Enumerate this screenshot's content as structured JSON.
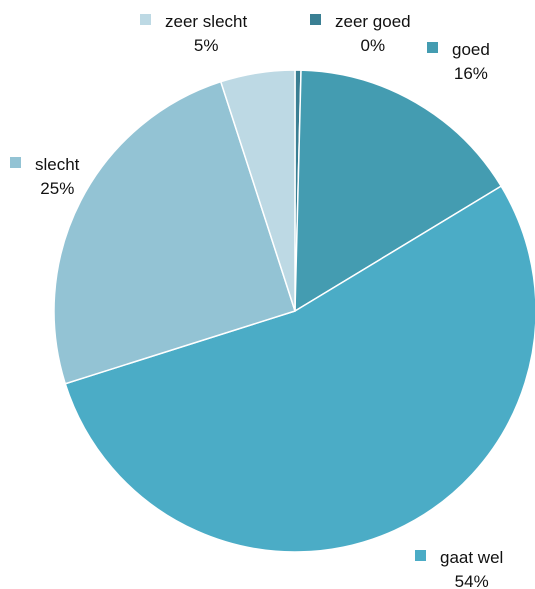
{
  "chart_data": {
    "type": "pie",
    "title": "",
    "slices": [
      {
        "label": "zeer goed",
        "value": 0.4,
        "display": "0%",
        "color": "#3A7F93"
      },
      {
        "label": "goed",
        "value": 16,
        "display": "16%",
        "color": "#449CB1"
      },
      {
        "label": "gaat wel",
        "value": 54,
        "display": "54%",
        "color": "#4BACC6"
      },
      {
        "label": "slecht",
        "value": 25,
        "display": "25%",
        "color": "#93C3D4"
      },
      {
        "label": "zeer slecht",
        "value": 5,
        "display": "5%",
        "color": "#BDD9E4"
      }
    ],
    "start_angle_deg": 0,
    "direction": "clockwise",
    "legend": "data-labels-outside"
  }
}
